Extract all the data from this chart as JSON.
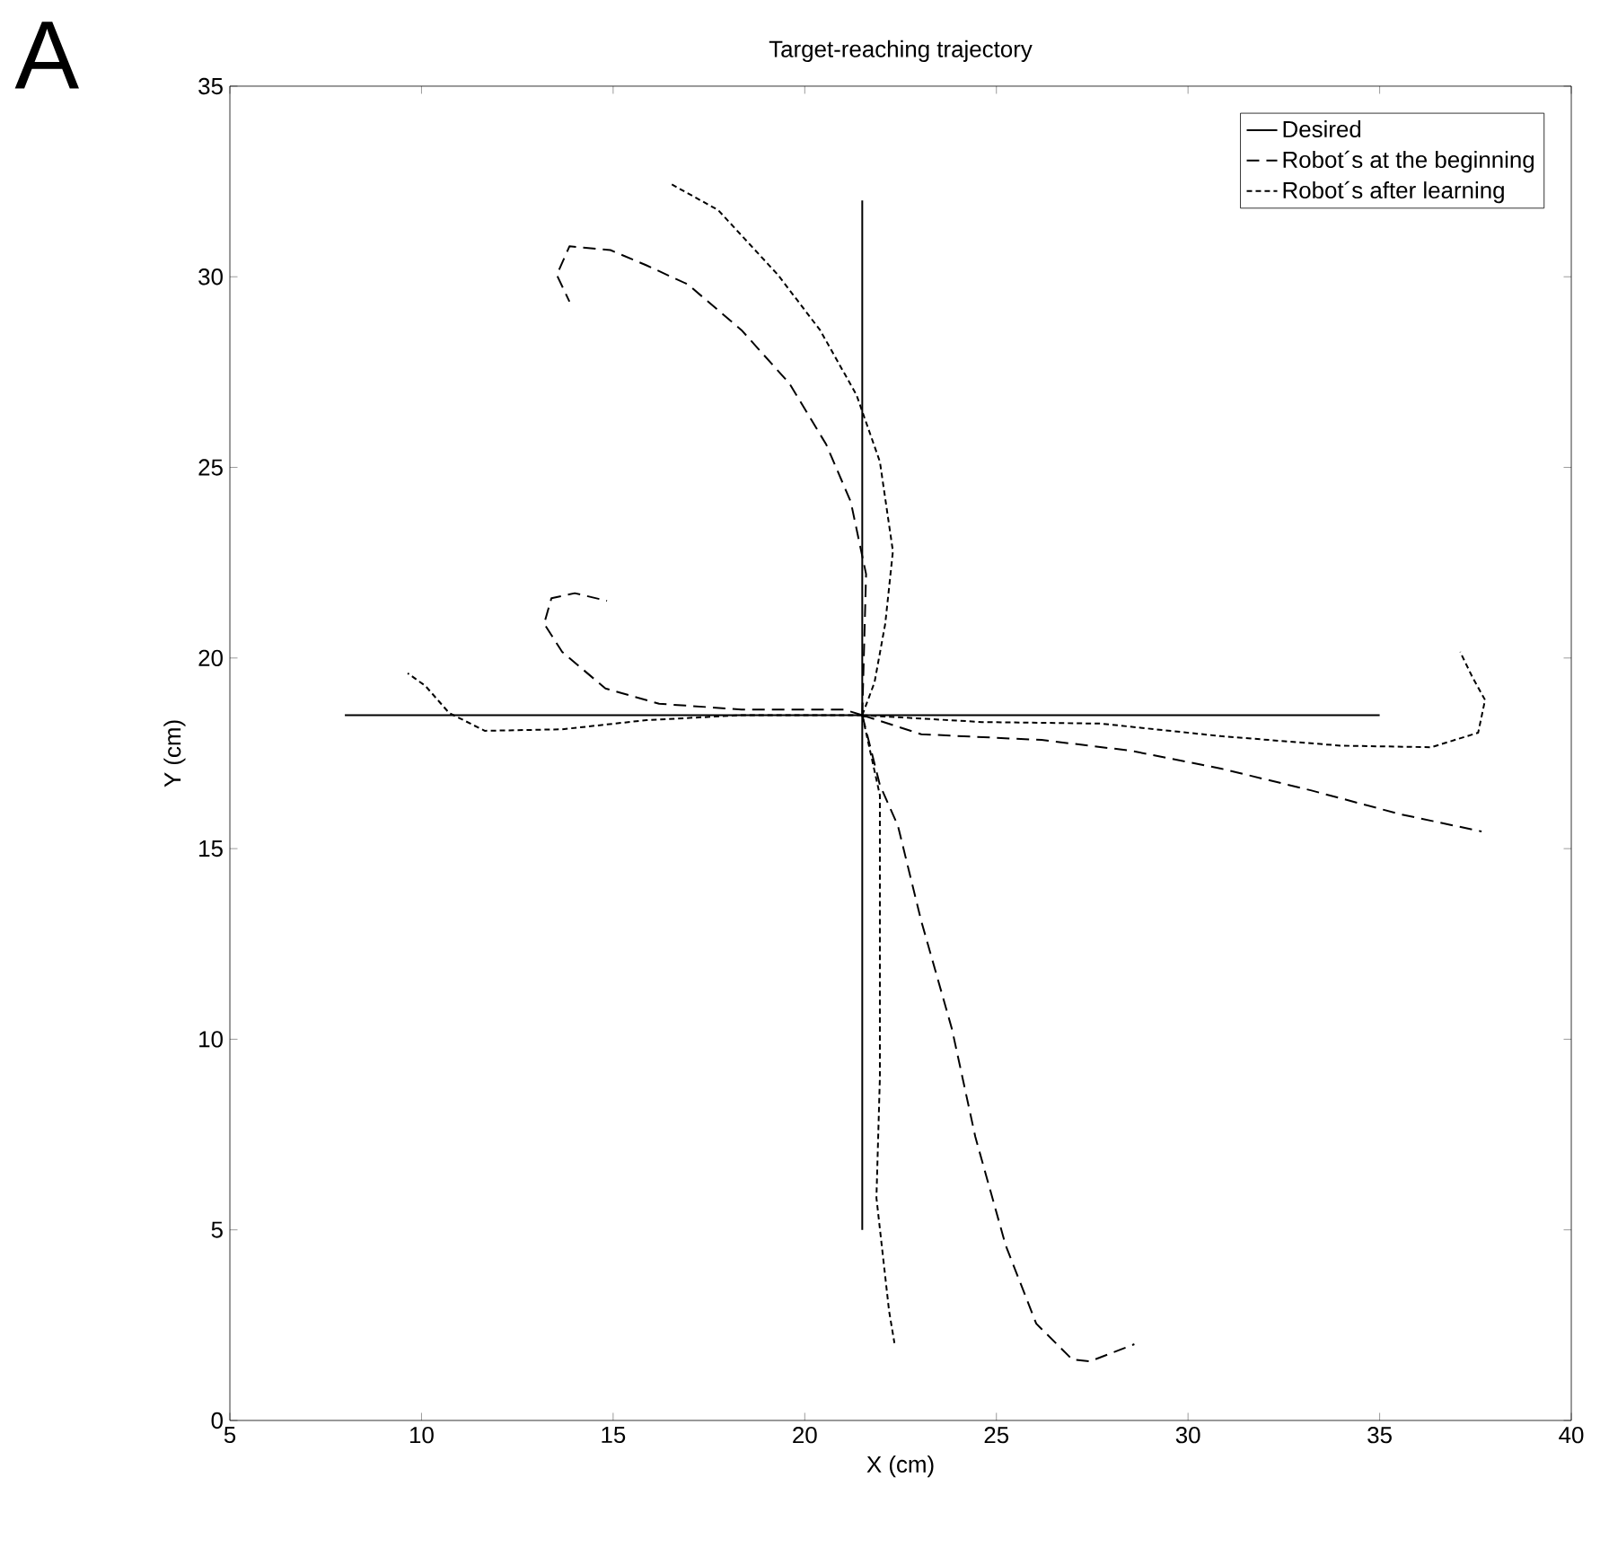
{
  "chart_data": {
    "type": "line",
    "title": "Target-reaching trajectory",
    "xlabel": "X (cm)",
    "ylabel": "Y (cm)",
    "annotations": [
      "A"
    ],
    "xlim": [
      5,
      40
    ],
    "ylim": [
      0,
      35
    ],
    "xticks": [
      5,
      10,
      15,
      20,
      25,
      30,
      35,
      40
    ],
    "yticks": [
      0,
      5,
      10,
      15,
      20,
      25,
      30,
      35
    ],
    "grid": false,
    "legend": "top right",
    "marker": "none",
    "series": [
      {
        "name": "Desired",
        "color": "#000000",
        "line_style": "solid",
        "x": [
          8,
          35,
          null,
          21.5,
          21.5
        ],
        "values": [
          18.5,
          18.5,
          null,
          5,
          32
        ]
      },
      {
        "name": "Robot´s at the beginning",
        "color": "#000000",
        "line_style": "dashed",
        "x": [
          21.5,
          21.6,
          21.2,
          20.56,
          19.6,
          18.35,
          16.95,
          15.87,
          14.93,
          13.86,
          13.53,
          13.86,
          null,
          21.5,
          23.04,
          26.18,
          28.5,
          30.86,
          33.2,
          35.55,
          37.66,
          null,
          21.5,
          21.02,
          18.35,
          16.2,
          14.8,
          13.67,
          13.2,
          13.39,
          14.0,
          14.84,
          null,
          21.5,
          21.96,
          22.43,
          23.04,
          23.84,
          24.45,
          25.24,
          26.04,
          26.98,
          27.44,
          28.6
        ],
        "values": [
          18.5,
          22.2,
          24.1,
          25.6,
          27.2,
          28.6,
          29.8,
          30.3,
          30.7,
          30.8,
          30.05,
          29.35,
          null,
          18.5,
          18.0,
          17.85,
          17.57,
          17.1,
          16.53,
          15.9,
          15.45,
          null,
          18.5,
          18.65,
          18.65,
          18.8,
          19.2,
          20.16,
          20.9,
          21.57,
          21.7,
          21.5,
          null,
          18.5,
          16.67,
          15.6,
          13.1,
          10.27,
          7.44,
          4.6,
          2.54,
          1.6,
          1.55,
          2.0
        ]
      },
      {
        "name": "Robot´s after learning",
        "color": "#000000",
        "line_style": "dotted",
        "x": [
          21.5,
          21.82,
          22.1,
          22.3,
          21.96,
          21.35,
          20.4,
          19.3,
          17.74,
          16.48,
          null,
          21.5,
          18.35,
          15.87,
          13.67,
          11.65,
          10.72,
          10.1,
          9.64,
          null,
          21.5,
          24.63,
          27.72,
          30.86,
          34.0,
          36.35,
          37.57,
          37.75,
          37.42,
          37.1,
          null,
          21.5,
          21.96,
          21.96,
          21.87,
          22.2,
          22.34
        ],
        "values": [
          18.5,
          19.36,
          20.9,
          22.8,
          25.15,
          26.9,
          28.6,
          30.05,
          31.75,
          32.45,
          null,
          18.5,
          18.5,
          18.37,
          18.13,
          18.09,
          18.56,
          19.27,
          19.6,
          null,
          18.5,
          18.32,
          18.28,
          17.95,
          17.7,
          17.66,
          18.04,
          18.9,
          19.5,
          20.16,
          null,
          18.5,
          16.4,
          9.0,
          5.84,
          2.87,
          2.03
        ]
      }
    ]
  }
}
